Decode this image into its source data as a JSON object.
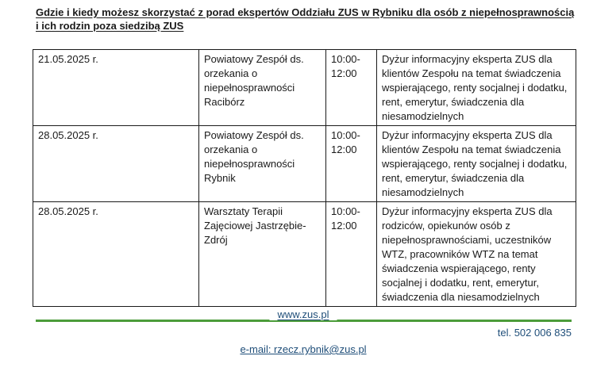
{
  "title": {
    "line1": "Gdzie i kiedy możesz skorzystać z porad ekspertów Oddziału ZUS w Rybniku dla osób z niepełnosprawnością",
    "line2": "i ich rodzin poza siedzibą ZUS"
  },
  "schedule_table": {
    "rows": [
      {
        "date": "21.05.2025 r.",
        "location": "Powiatowy Zespół ds. orzekania o niepełnosprawności Racibórz",
        "time": "10:00-12:00",
        "details": "Dyżur informacyjny eksperta ZUS dla klientów Zespołu na temat świadczenia wspierającego, renty socjalnej i dodatku, rent, emerytur, świadczenia dla niesamodzielnych"
      },
      {
        "date": "28.05.2025 r.",
        "location": "Powiatowy Zespół ds. orzekania o niepełnosprawności Rybnik",
        "time": "10:00-12:00",
        "details": "Dyżur informacyjny eksperta ZUS dla klientów Zespołu na temat świadczenia wspierającego, renty socjalnej i dodatku, rent, emerytur, świadczenia dla niesamodzielnych"
      },
      {
        "date": "28.05.2025 r.",
        "location": "Warsztaty Terapii Zajęciowej Jastrzębie-Zdrój",
        "time": "10:00-12:00",
        "details": "Dyżur informacyjny eksperta ZUS dla rodziców, opiekunów osób z niepełnosprawnościami, uczestników WTZ, pracowników WTZ na temat świadczenia wspierającego, renty socjalnej i dodatku, rent, emerytur, świadczenia dla niesamodzielnych"
      }
    ]
  },
  "footer": {
    "website": "www.zus.pl",
    "phone": "tel. 502 006 835",
    "email": "e-mail: rzecz.rybnik@zus.pl"
  },
  "colors": {
    "accent_green": "#4C9C3A",
    "link_navy": "#1F4E79",
    "text_black": "#1A1A1A"
  }
}
